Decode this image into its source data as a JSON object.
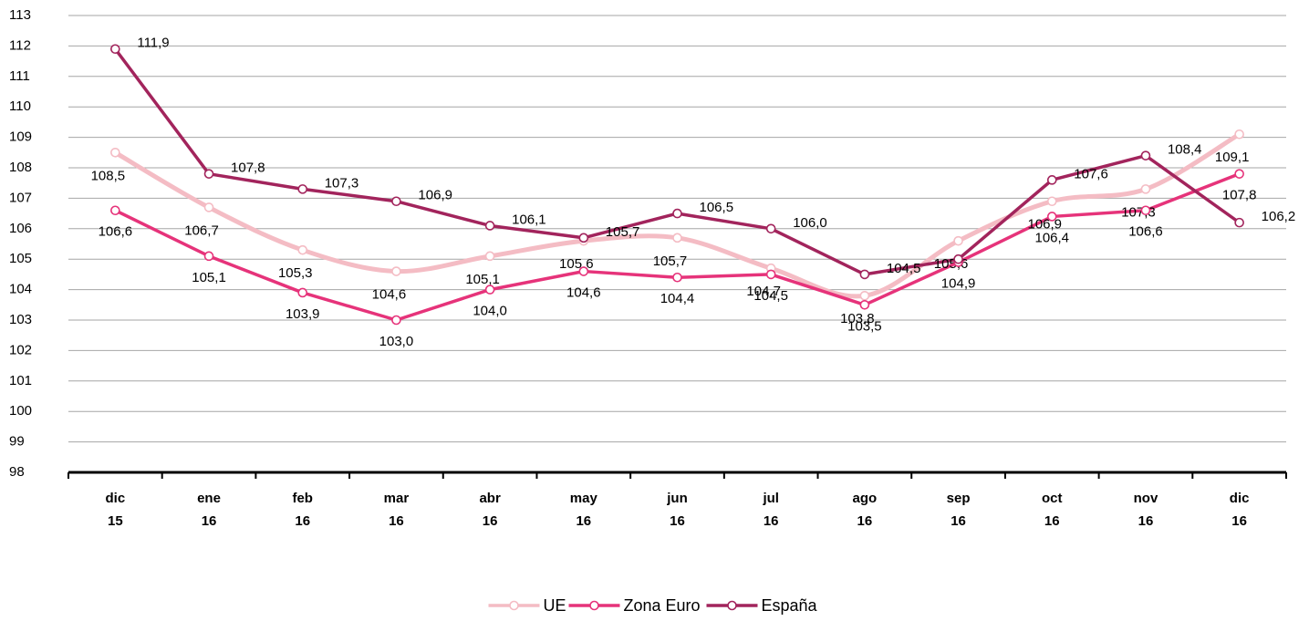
{
  "chart_data": {
    "type": "line",
    "categories": [
      [
        "dic",
        "15"
      ],
      [
        "ene",
        "16"
      ],
      [
        "feb",
        "16"
      ],
      [
        "mar",
        "16"
      ],
      [
        "abr",
        "16"
      ],
      [
        "may",
        "16"
      ],
      [
        "jun",
        "16"
      ],
      [
        "jul",
        "16"
      ],
      [
        "ago",
        "16"
      ],
      [
        "sep",
        "16"
      ],
      [
        "oct",
        "16"
      ],
      [
        "nov",
        "16"
      ],
      [
        "dic",
        "16"
      ]
    ],
    "series": [
      {
        "name": "UE",
        "color": "#f4bcc4",
        "smooth": true,
        "values": [
          108.5,
          106.7,
          105.3,
          104.6,
          105.1,
          105.6,
          105.7,
          104.7,
          103.8,
          105.6,
          106.9,
          107.3,
          109.1
        ],
        "value_labels": [
          "108,5",
          "106,7",
          "105,3",
          "104,6",
          "105,1",
          "105,6",
          "105,7",
          "104,7",
          "103,8",
          "105,6",
          "106,9",
          "107,3",
          "109,1"
        ]
      },
      {
        "name": "Zona Euro",
        "color": "#e6337a",
        "smooth": false,
        "values": [
          106.6,
          105.1,
          103.9,
          103.0,
          104.0,
          104.6,
          104.4,
          104.5,
          103.5,
          104.9,
          106.4,
          106.6,
          107.8
        ],
        "value_labels": [
          "106,6",
          "105,1",
          "103,9",
          "103,0",
          "104,0",
          "104,6",
          "104,4",
          "104,5",
          "103,5",
          "104,9",
          "106,4",
          "106,6",
          "107,8"
        ]
      },
      {
        "name": "España",
        "color": "#a2245c",
        "smooth": false,
        "values": [
          111.9,
          107.8,
          107.3,
          106.9,
          106.1,
          105.7,
          106.5,
          106.0,
          104.5,
          105.0,
          107.6,
          108.4,
          106.2
        ],
        "value_labels": [
          "111,9",
          "107,8",
          "107,3",
          "106,9",
          "106,1",
          "105,7",
          "106,5",
          "106,0",
          "104,5",
          null,
          "107,6",
          "108,4",
          "106,2"
        ]
      }
    ],
    "ylim": [
      98,
      113
    ],
    "yticks": [
      98,
      99,
      100,
      101,
      102,
      103,
      104,
      105,
      106,
      107,
      108,
      109,
      110,
      111,
      112,
      113
    ],
    "grid": true
  }
}
